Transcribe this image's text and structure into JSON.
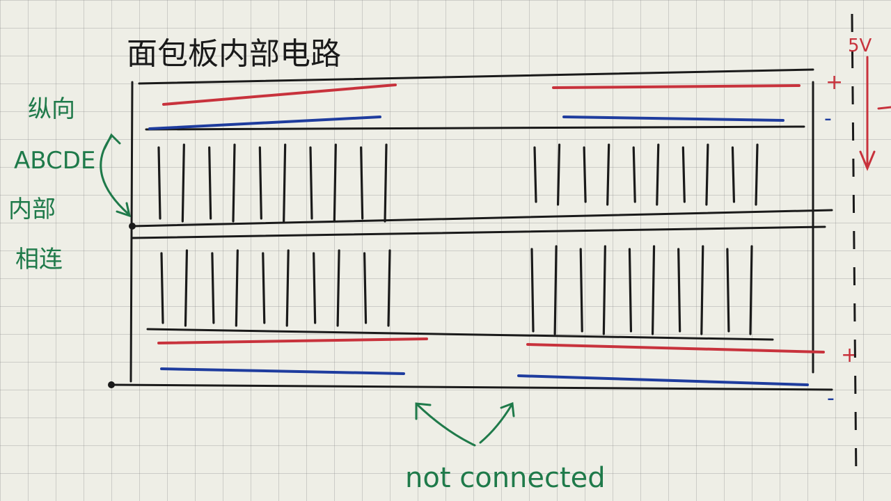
{
  "title": "面包板内部电路",
  "annotations": {
    "left_line1": "纵向",
    "left_line2": "ABCDE",
    "left_line3": "内部",
    "left_line4": "相连",
    "bottom": "not connected",
    "voltage": "5V"
  },
  "rails": {
    "top_plus": "+",
    "top_minus": "-",
    "bottom_plus": "+",
    "bottom_minus": "-"
  },
  "colors": {
    "ink": "#1a1a1a",
    "red": "#c8323c",
    "blue": "#1e3c9e",
    "green": "#1f7a4a",
    "paper": "#eeeee6"
  },
  "layout_groups": {
    "strips_per_group": 10,
    "groups": [
      "top-left",
      "top-right",
      "bottom-left",
      "bottom-right"
    ]
  }
}
